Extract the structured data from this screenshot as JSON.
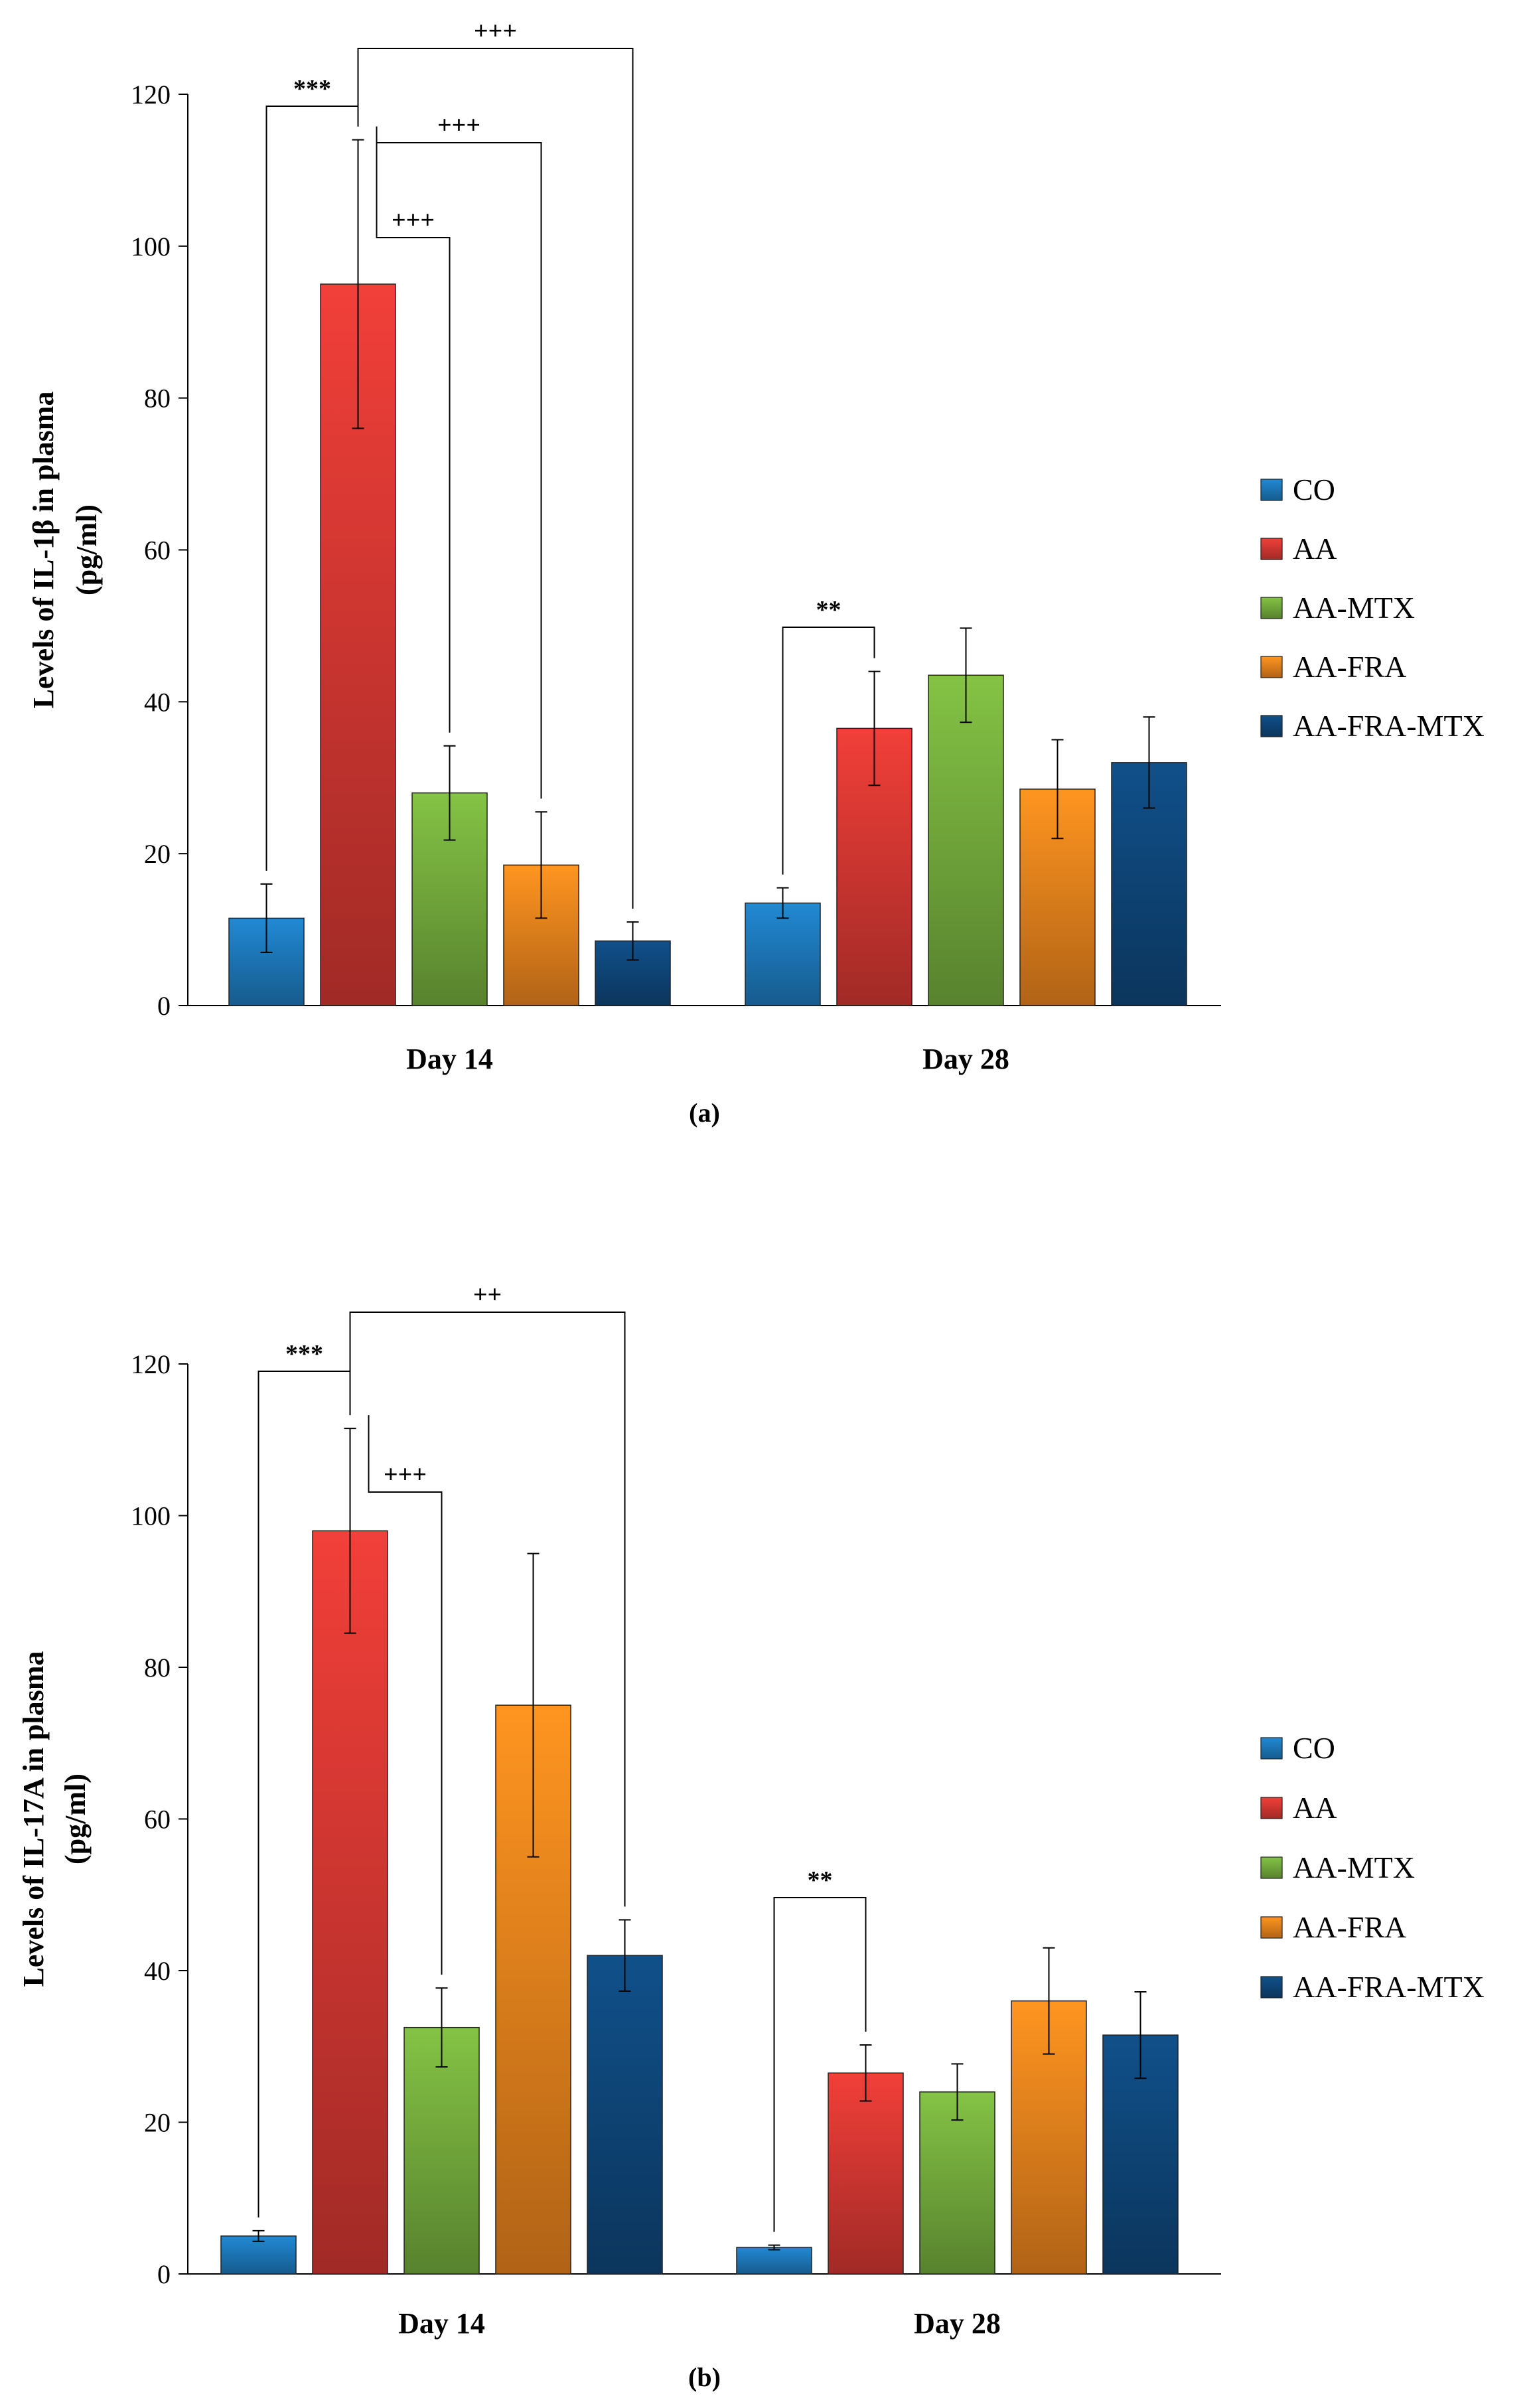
{
  "chart_data": [
    {
      "type": "bar",
      "panel_label": "(a)",
      "ylabel_line1": "Levels of IL-1β in plasma",
      "ylabel_line2": "(pg/ml)",
      "ylim": [
        0,
        120
      ],
      "yticks": [
        0,
        20,
        40,
        60,
        80,
        100,
        120
      ],
      "grid": false,
      "legend_position": "right",
      "categories": [
        "Day 14",
        "Day 28"
      ],
      "series": [
        {
          "name": "CO",
          "color": "#1f7fc4",
          "values": [
            11.5,
            13.5
          ],
          "errors": [
            4.5,
            2.0
          ]
        },
        {
          "name": "AA",
          "color": "#e03a35",
          "values": [
            95.0,
            36.5
          ],
          "errors": [
            19.0,
            7.5
          ]
        },
        {
          "name": "AA-MTX",
          "color": "#7ab540",
          "values": [
            28.0,
            43.5
          ],
          "errors": [
            6.2,
            6.2
          ]
        },
        {
          "name": "AA-FRA",
          "color": "#f68a1e",
          "values": [
            18.5,
            28.5
          ],
          "errors": [
            7.0,
            6.5
          ]
        },
        {
          "name": "AA-FRA-MTX",
          "color": "#0f4a80",
          "values": [
            8.5,
            32.0
          ],
          "errors": [
            2.5,
            6.0
          ]
        }
      ],
      "annotations": [
        {
          "text": "***",
          "from_category": 0,
          "from_series": 0,
          "to_category": 0,
          "to_series": 1
        },
        {
          "text": "+++",
          "from_category": 0,
          "from_series": 1,
          "to_category": 0,
          "to_series": 4
        },
        {
          "text": "+++",
          "from_category": 0,
          "from_series": 1,
          "to_category": 0,
          "to_series": 3
        },
        {
          "text": "+++",
          "from_category": 0,
          "from_series": 1,
          "to_category": 0,
          "to_series": 2
        },
        {
          "text": "**",
          "from_category": 1,
          "from_series": 0,
          "to_category": 1,
          "to_series": 1
        }
      ]
    },
    {
      "type": "bar",
      "panel_label": "(b)",
      "ylabel_line1": "Levels of IL-17A in plasma",
      "ylabel_line2": "(pg/ml)",
      "ylim": [
        0,
        120
      ],
      "yticks": [
        0,
        20,
        40,
        60,
        80,
        100,
        120
      ],
      "grid": false,
      "legend_position": "right",
      "categories": [
        "Day 14",
        "Day 28"
      ],
      "series": [
        {
          "name": "CO",
          "color": "#1f7fc4",
          "values": [
            5.0,
            3.5
          ],
          "errors": [
            0.7,
            0.3
          ]
        },
        {
          "name": "AA",
          "color": "#e03a35",
          "values": [
            98.0,
            26.5
          ],
          "errors": [
            13.5,
            3.7
          ]
        },
        {
          "name": "AA-MTX",
          "color": "#7ab540",
          "values": [
            32.5,
            24.0
          ],
          "errors": [
            5.2,
            3.7
          ]
        },
        {
          "name": "AA-FRA",
          "color": "#f68a1e",
          "values": [
            75.0,
            36.0
          ],
          "errors": [
            20.0,
            7.0
          ]
        },
        {
          "name": "AA-FRA-MTX",
          "color": "#0f4a80",
          "values": [
            42.0,
            31.5
          ],
          "errors": [
            4.7,
            5.7
          ]
        }
      ],
      "annotations": [
        {
          "text": "***",
          "from_category": 0,
          "from_series": 0,
          "to_category": 0,
          "to_series": 1
        },
        {
          "text": "++",
          "from_category": 0,
          "from_series": 1,
          "to_category": 0,
          "to_series": 4
        },
        {
          "text": "+++",
          "from_category": 0,
          "from_series": 1,
          "to_category": 0,
          "to_series": 2
        },
        {
          "text": "**",
          "from_category": 1,
          "from_series": 0,
          "to_category": 1,
          "to_series": 1
        }
      ]
    }
  ]
}
